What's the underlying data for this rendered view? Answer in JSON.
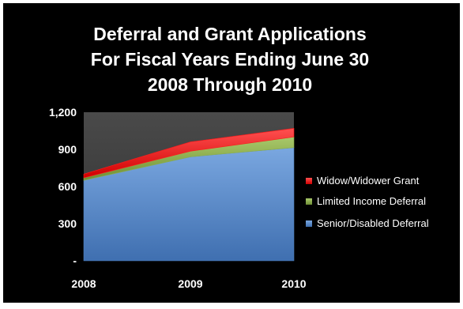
{
  "chart_data": {
    "type": "area",
    "stacked": true,
    "title_lines": [
      "Deferral and Grant Applications",
      "For Fiscal Years Ending June 30",
      "2008 Through 2010"
    ],
    "categories": [
      "2008",
      "2009",
      "2010"
    ],
    "y_ticks": [
      "-",
      "300",
      "600",
      "900",
      "1,200"
    ],
    "ylim": [
      0,
      1200
    ],
    "grid": false,
    "legend_position": "right",
    "series": [
      {
        "name": "Senior/Disabled Deferral",
        "values": [
          650,
          840,
          915
        ],
        "color": "#4f81bd"
      },
      {
        "name": "Limited Income Deferral",
        "values": [
          20,
          45,
          85
        ],
        "color": "#8fb04b"
      },
      {
        "name": "Widow/Widower Grant",
        "values": [
          30,
          75,
          70
        ],
        "color": "#ff1a1a"
      }
    ],
    "legend_order": [
      "Widow/Widower Grant",
      "Limited Income Deferral",
      "Senior/Disabled Deferral"
    ],
    "plot_background": "#404040",
    "background": "#000000"
  }
}
